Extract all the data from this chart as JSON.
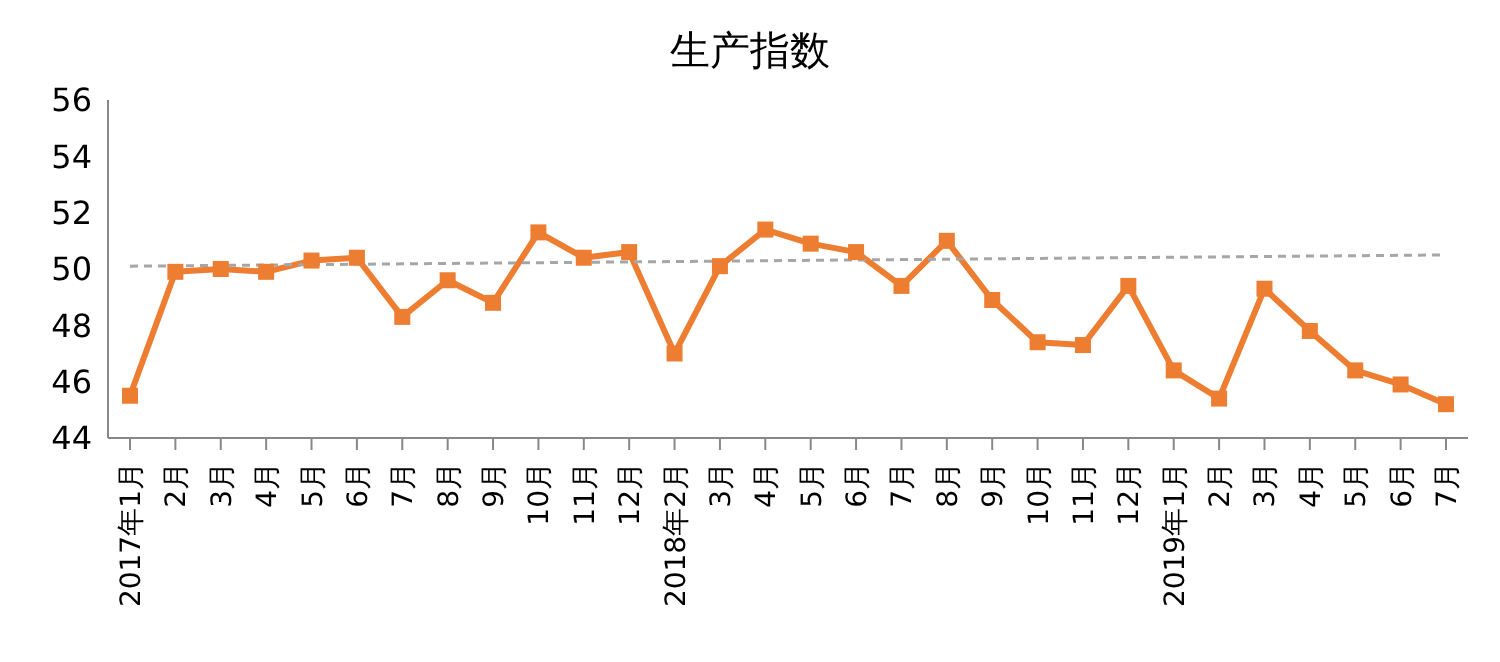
{
  "chart_data": {
    "type": "line",
    "title": "生产指数",
    "categories": [
      "2017年1月",
      "2月",
      "3月",
      "4月",
      "5月",
      "6月",
      "7月",
      "8月",
      "9月",
      "10月",
      "11月",
      "12月",
      "2018年2月",
      "3月",
      "4月",
      "5月",
      "6月",
      "7月",
      "8月",
      "9月",
      "10月",
      "11月",
      "12月",
      "2019年1月",
      "2月",
      "3月",
      "4月",
      "5月",
      "6月",
      "7月"
    ],
    "series": [
      {
        "color": "#ed7d31",
        "marker": "square",
        "values": [
          45.5,
          49.9,
          50.0,
          49.9,
          50.3,
          50.4,
          48.3,
          49.6,
          48.8,
          51.3,
          50.4,
          50.6,
          47.0,
          50.1,
          51.4,
          50.9,
          50.6,
          49.4,
          51.0,
          48.9,
          47.4,
          47.3,
          49.4,
          46.4,
          45.4,
          49.3,
          47.8,
          46.4,
          45.9,
          45.2
        ]
      },
      {
        "color": "#a6a6a6",
        "marker": "none",
        "line_style": "dashed",
        "values": [
          50.1,
          null,
          null,
          null,
          null,
          null,
          null,
          null,
          null,
          null,
          null,
          null,
          null,
          null,
          null,
          null,
          null,
          null,
          null,
          null,
          null,
          null,
          null,
          null,
          null,
          null,
          null,
          null,
          null,
          50.5
        ]
      }
    ],
    "ylim": [
      44,
      56
    ],
    "yticks": [
      44,
      46,
      48,
      50,
      52,
      54,
      56
    ],
    "legend": false
  }
}
